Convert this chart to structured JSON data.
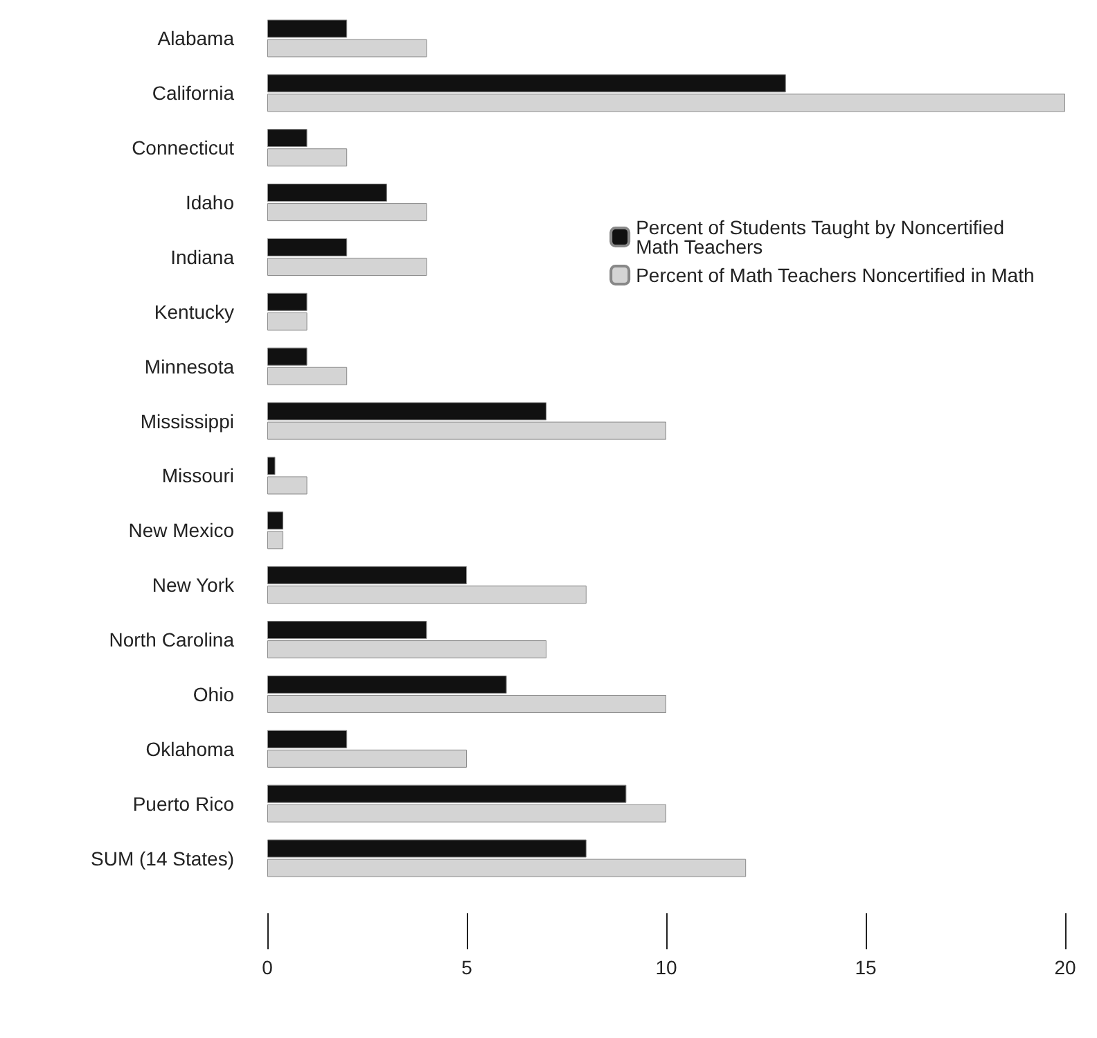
{
  "chart_data": {
    "type": "bar",
    "orientation": "horizontal",
    "categories": [
      "Alabama",
      "California",
      "Connecticut",
      "Idaho",
      "Indiana",
      "Kentucky",
      "Minnesota",
      "Mississippi",
      "Missouri",
      "New Mexico",
      "New York",
      "North Carolina",
      "Ohio",
      "Oklahoma",
      "Puerto Rico",
      "SUM (14 States)"
    ],
    "series": [
      {
        "name": "Percent of Students Taught by Noncertified Math Teachers",
        "color": "#111111",
        "values": [
          2,
          13,
          1,
          3,
          2,
          1,
          1,
          7,
          0.2,
          0.4,
          5,
          4,
          6,
          2,
          9,
          8
        ]
      },
      {
        "name": "Percent of Math Teachers Noncertified in Math",
        "color": "#d4d4d4",
        "values": [
          4,
          20,
          2,
          4,
          4,
          1,
          2,
          10,
          1,
          0.4,
          8,
          7,
          10,
          5,
          10,
          12
        ]
      }
    ],
    "xlim": [
      0,
      20
    ],
    "xticks": [
      0,
      5,
      10,
      15,
      20
    ],
    "grid": false,
    "legend": "right"
  }
}
